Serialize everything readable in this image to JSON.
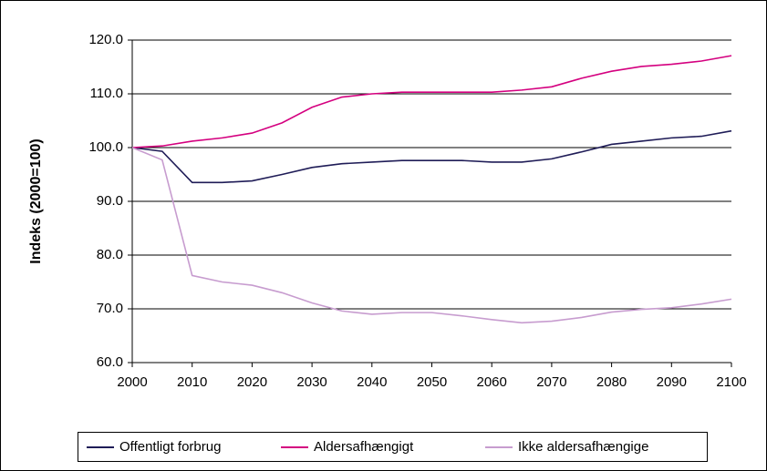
{
  "chart_data": {
    "type": "line",
    "y_label": "Indeks (2000=100)",
    "x": [
      2000,
      2005,
      2010,
      2015,
      2020,
      2025,
      2030,
      2035,
      2040,
      2045,
      2050,
      2055,
      2060,
      2065,
      2070,
      2075,
      2080,
      2085,
      2090,
      2095,
      2100
    ],
    "series": [
      {
        "name": "Offentligt forbrug",
        "color": "#1f1c57",
        "values": [
          100,
          99.3,
          93.5,
          93.5,
          93.8,
          95.0,
          96.3,
          97.0,
          97.3,
          97.6,
          97.6,
          97.6,
          97.3,
          97.3,
          97.9,
          99.2,
          100.6,
          101.2,
          101.8,
          102.1,
          103.1
        ]
      },
      {
        "name": "Aldersafhængigt",
        "color": "#d4007f",
        "values": [
          100,
          100.3,
          101.2,
          101.8,
          102.7,
          104.6,
          107.5,
          109.4,
          110.0,
          110.3,
          110.3,
          110.3,
          110.3,
          110.7,
          111.3,
          112.9,
          114.2,
          115.1,
          115.5,
          116.1,
          117.1
        ]
      },
      {
        "name": "Ikke aldersafhængige",
        "color": "#c79ccf",
        "values": [
          100,
          97.7,
          76.2,
          75.0,
          74.4,
          73.0,
          71.1,
          69.6,
          69.0,
          69.3,
          69.3,
          68.7,
          68.0,
          67.4,
          67.7,
          68.4,
          69.4,
          69.9,
          70.2,
          70.9,
          71.8
        ]
      }
    ],
    "xlim": [
      2000,
      2100
    ],
    "xticks": [
      2000,
      2010,
      2020,
      2030,
      2040,
      2050,
      2060,
      2070,
      2080,
      2090,
      2100
    ],
    "ylim": [
      60,
      120
    ],
    "yticks": [
      {
        "value": 60,
        "label": "60.0"
      },
      {
        "value": 70,
        "label": "70.0"
      },
      {
        "value": 80,
        "label": "80.0"
      },
      {
        "value": 90,
        "label": "90.0"
      },
      {
        "value": 100,
        "label": "100.0"
      },
      {
        "value": 110,
        "label": "110.0"
      },
      {
        "value": 120,
        "label": "120.0"
      }
    ],
    "grid": true,
    "legend": "bottom"
  }
}
